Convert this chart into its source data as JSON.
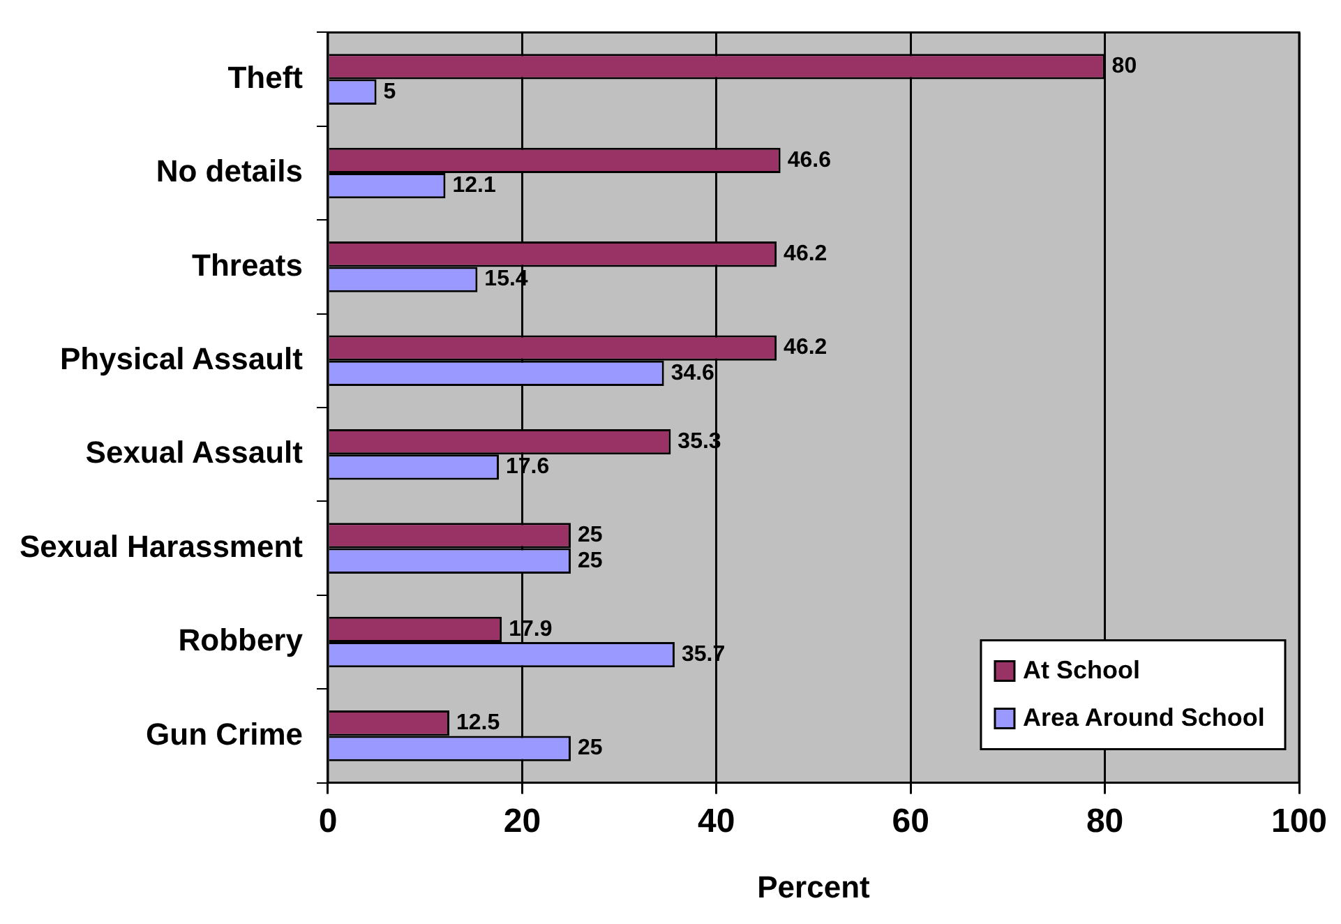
{
  "chart_data": {
    "type": "bar",
    "orientation": "horizontal",
    "xlabel": "Percent",
    "categories": [
      "Theft",
      "No details",
      "Threats",
      "Physical Assault",
      "Sexual Assault",
      "Sexual Harassment",
      "Robbery",
      "Gun Crime"
    ],
    "series": [
      {
        "name": "At School",
        "color": "#993366",
        "values": [
          80,
          46.6,
          46.2,
          46.2,
          35.3,
          25,
          17.9,
          12.5
        ]
      },
      {
        "name": "Area Around School",
        "color": "#9999ff",
        "values": [
          5,
          12.1,
          15.4,
          34.6,
          17.6,
          25,
          35.7,
          25
        ]
      }
    ],
    "xlim": [
      0,
      100
    ],
    "xticks": [
      0,
      20,
      40,
      60,
      80,
      100
    ],
    "grid": "x",
    "legend": "bottom right",
    "data_labels": true
  }
}
